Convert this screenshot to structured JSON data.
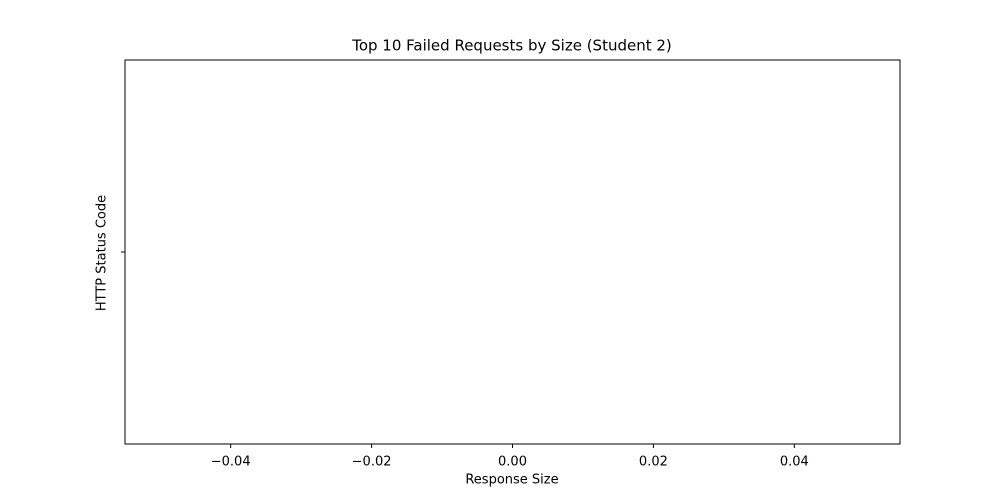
{
  "chart_data": {
    "type": "barh",
    "title": "Top 10 Failed Requests by Size (Student 2)",
    "x_label": "Response Size",
    "y_label": "HTTP Status Code",
    "categories": [
      null
    ],
    "values": [
      null
    ],
    "color": "#1f77b4",
    "xlim": [
      -0.055,
      0.055
    ],
    "xticks": [
      {
        "value": -0.04,
        "label": "−0.04"
      },
      {
        "value": -0.02,
        "label": "−0.02"
      },
      {
        "value": 0,
        "label": "0.00"
      },
      {
        "value": 0.02,
        "label": "0.02"
      },
      {
        "value": 0.04,
        "label": "0.04"
      }
    ],
    "grid": false
  }
}
